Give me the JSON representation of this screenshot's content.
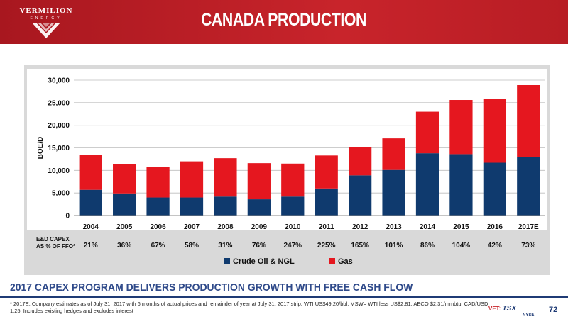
{
  "header": {
    "logo_name": "VERMILION",
    "logo_sub": "ENERGY",
    "title": "CANADA PRODUCTION"
  },
  "colors": {
    "oil": "#0f3a6e",
    "gas": "#e5171f",
    "header_red": "#c8242b",
    "navy": "#1f3b75"
  },
  "chart_data": {
    "type": "bar",
    "stacked": true,
    "categories": [
      "2004",
      "2005",
      "2006",
      "2007",
      "2008",
      "2009",
      "2010",
      "2011",
      "2012",
      "2013",
      "2014",
      "2015",
      "2016",
      "2017E"
    ],
    "series": [
      {
        "name": "Crude Oil & NGL",
        "color": "#0f3a6e",
        "values": [
          5700,
          4900,
          4000,
          4000,
          4200,
          3600,
          4200,
          6000,
          8900,
          10100,
          13800,
          13600,
          11700,
          13000
        ]
      },
      {
        "name": "Gas",
        "color": "#e5171f",
        "values": [
          7800,
          6500,
          6800,
          8000,
          8500,
          8000,
          7300,
          7300,
          6300,
          7000,
          9200,
          12000,
          14100,
          15900
        ]
      }
    ],
    "ylabel": "BOE/D",
    "ylim": [
      0,
      30000
    ],
    "yticks": [
      0,
      5000,
      10000,
      15000,
      20000,
      25000,
      30000
    ],
    "ytick_labels": [
      "0",
      "5,000",
      "10,000",
      "15,000",
      "20,000",
      "25,000",
      "30,000"
    ],
    "grid": true,
    "legend": "bottom",
    "capex_row": {
      "label_line1": "E&D CAPEX",
      "label_line2": "AS % OF FFO*",
      "values": [
        "21%",
        "36%",
        "67%",
        "58%",
        "31%",
        "76%",
        "247%",
        "225%",
        "165%",
        "101%",
        "86%",
        "104%",
        "42%",
        "73%"
      ]
    }
  },
  "banner": "2017 CAPEX PROGRAM DELIVERS PRODUCTION GROWTH WITH FREE CASH FLOW",
  "footnote": "* 2017E: Company estimates as of July 31, 2017 with 6 months of actual prices and remainder of year at July 31, 2017 strip: WTI US$49.20/bbl; MSW= WTI less US$2.81; AECO $2.31/mmbtu; CAD/USD 1.25. Includes existing hedges and excludes interest",
  "exchange": {
    "vet": "VET:",
    "tsx": "TSX",
    "nyse": "NYSE"
  },
  "page_number": "72"
}
